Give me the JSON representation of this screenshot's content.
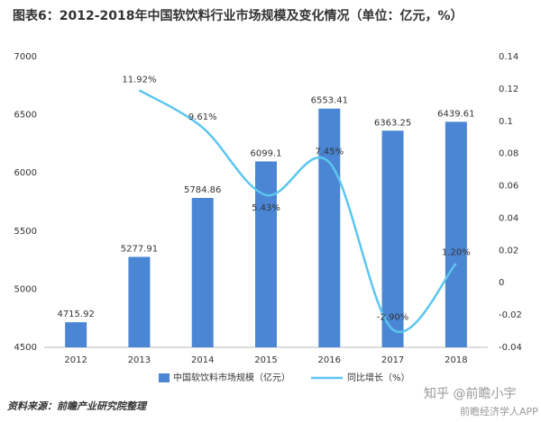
{
  "chart_data": {
    "type": "bar-line",
    "title": "图表6：2012-2018年中国软饮料行业市场规模及变化情况（单位：亿元，%）",
    "categories": [
      "2012",
      "2013",
      "2014",
      "2015",
      "2016",
      "2017",
      "2018"
    ],
    "series": [
      {
        "name": "中国软饮料市场规模（亿元）",
        "type": "bar",
        "color": "#4a86d4",
        "values": [
          4715.92,
          5277.91,
          5784.86,
          6099.1,
          6553.41,
          6363.25,
          6439.61
        ]
      },
      {
        "name": "同比增长（%）",
        "type": "line",
        "axis": "y2",
        "color": "#5bc6f0",
        "values": [
          null,
          0.1192,
          0.0961,
          0.0543,
          0.0745,
          -0.029,
          0.012
        ],
        "value_labels": [
          null,
          "11.92%",
          "9.61%",
          "5.43%",
          "7.45%",
          "-2.90%",
          "1.20%"
        ]
      }
    ],
    "ylim": [
      4500,
      7000
    ],
    "yticks": [
      4500,
      5000,
      5500,
      6000,
      6500,
      7000
    ],
    "y2lim": [
      -0.04,
      0.14
    ],
    "y2ticks": [
      -0.04,
      -0.02,
      0,
      0.02,
      0.04,
      0.06,
      0.08,
      0.1,
      0.12,
      0.14
    ],
    "legend": "bottom",
    "source": "资料来源：前瞻产业研究院整理",
    "watermark": [
      "知乎 @前瞻小宇",
      "前瞻经济学人APP"
    ]
  }
}
